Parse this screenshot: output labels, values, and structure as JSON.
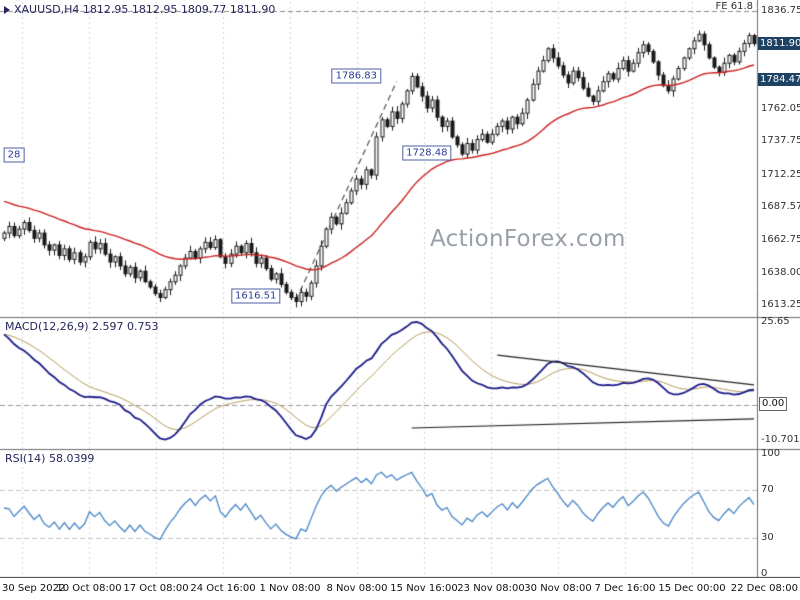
{
  "header": {
    "symbol_ohlc": "XAUUSD,H4 1812.95 1812.95 1809.77 1811.90"
  },
  "watermark": "ActionForex.com",
  "colors": {
    "up_candle": "#ffffff",
    "down_candle": "#1a1a1a",
    "ma_line": "#cc2222",
    "macd_line": "#1c1c8a",
    "macd_signal": "#b79b5e",
    "rsi_line": "#4a86c8",
    "badge_bg": "#1d4263",
    "annotation_blue": "#2c3e94",
    "watermark_gray": "#9aa0a8"
  },
  "price_panel": {
    "fe_label": "FE 61.8",
    "fe_level": 1836.75,
    "ticks": [
      {
        "label": "1836.75",
        "value": 1836.75,
        "badge": false
      },
      {
        "label": "1811.90",
        "value": 1811.9,
        "badge": true
      },
      {
        "label": "1784.47",
        "value": 1784.47,
        "badge": true
      },
      {
        "label": "1762.05",
        "value": 1762.05,
        "badge": false
      },
      {
        "label": "1737.75",
        "value": 1737.75,
        "badge": false
      },
      {
        "label": "1712.25",
        "value": 1712.25,
        "badge": false
      },
      {
        "label": "1687.57",
        "value": 1687.57,
        "badge": false
      },
      {
        "label": "1662.75",
        "value": 1662.75,
        "badge": false
      },
      {
        "label": "1638.00",
        "value": 1638.0,
        "badge": false
      },
      {
        "label": "1613.25",
        "value": 1613.25,
        "badge": false
      }
    ],
    "annotations": [
      {
        "text": "28",
        "i": 1,
        "price": 1727,
        "edge": true
      },
      {
        "text": "1616.51",
        "i": 50,
        "price": 1620,
        "edge": false
      },
      {
        "text": "1786.83",
        "i": 70,
        "price": 1787,
        "edge": false
      },
      {
        "text": "1728.48",
        "i": 84,
        "price": 1729,
        "edge": false
      }
    ],
    "trendline": {
      "from": {
        "i": 58,
        "price": 1617
      },
      "to": {
        "i": 78,
        "price": 1783
      }
    }
  },
  "macd_panel": {
    "label": "MACD(12,26,9) 2.597 0.753",
    "ticks": [
      {
        "label": "25.65",
        "value": 25.65,
        "boxed": false
      },
      {
        "label": "0.00",
        "value": 0,
        "boxed": true
      },
      {
        "label": "-10.701",
        "value": -10.701,
        "boxed": false
      }
    ],
    "wedge": {
      "upper": {
        "from": {
          "i": 98,
          "v": 15.4
        },
        "to": {
          "i": 149,
          "v": 6.2
        }
      },
      "lower": {
        "from": {
          "i": 81,
          "v": -7.1
        },
        "to": {
          "i": 149,
          "v": -4.3
        }
      }
    }
  },
  "rsi_panel": {
    "label": "RSI(14) 58.0399",
    "ticks": [
      {
        "label": "100",
        "value": 100
      },
      {
        "label": "70",
        "value": 70
      },
      {
        "label": "30",
        "value": 30
      },
      {
        "label": "0",
        "value": 0
      }
    ]
  },
  "x_axis": {
    "labels": [
      "30 Sep 2022",
      "10 Oct 08:00",
      "17 Oct 08:00",
      "24 Oct 16:00",
      "1 Nov 08:00",
      "8 Nov 08:00",
      "15 Nov 16:00",
      "23 Nov 08:00",
      "30 Nov 08:00",
      "7 Dec 16:00",
      "15 Dec 00:00",
      "22 Dec 08:00"
    ]
  },
  "chart_data": [
    {
      "type": "candlestick",
      "symbol": "XAUUSD",
      "timeframe": "H4",
      "last": {
        "open": 1812.95,
        "high": 1812.95,
        "low": 1809.77,
        "close": 1811.9
      },
      "x_tick_labels": [
        "30 Sep 2022",
        "10 Oct 08:00",
        "17 Oct 08:00",
        "24 Oct 16:00",
        "1 Nov 08:00",
        "8 Nov 08:00",
        "15 Nov 16:00",
        "23 Nov 08:00",
        "30 Nov 08:00",
        "7 Dec 16:00",
        "15 Dec 00:00",
        "22 Dec 08:00"
      ],
      "y_ticks": [
        1836.75,
        1811.9,
        1784.47,
        1762.05,
        1737.75,
        1712.25,
        1687.57,
        1662.75,
        1638.0,
        1613.25
      ],
      "ylim": [
        1613.25,
        1836.75
      ],
      "key_levels": {
        "fib_expansion_61_8": 1836.75,
        "swing_high": 1786.83,
        "retrace_low": 1728.48,
        "major_low": 1616.51
      },
      "overlays": [
        "red-moving-average",
        "dashed-trendline-from-1616.51-to-1786.83"
      ],
      "close": [
        1668,
        1673,
        1666,
        1671,
        1676,
        1670,
        1664,
        1668,
        1659,
        1655,
        1659,
        1651,
        1656,
        1648,
        1653,
        1646,
        1650,
        1661,
        1656,
        1660,
        1652,
        1646,
        1650,
        1643,
        1637,
        1642,
        1634,
        1639,
        1631,
        1627,
        1622,
        1619,
        1625,
        1631,
        1636,
        1643,
        1649,
        1654,
        1649,
        1656,
        1661,
        1657,
        1663,
        1650,
        1645,
        1652,
        1658,
        1653,
        1660,
        1653,
        1645,
        1649,
        1641,
        1633,
        1637,
        1629,
        1623,
        1619,
        1616,
        1623,
        1620,
        1630,
        1643,
        1658,
        1671,
        1680,
        1675,
        1683,
        1691,
        1700,
        1709,
        1705,
        1716,
        1712,
        1741,
        1754,
        1749,
        1760,
        1755,
        1766,
        1776,
        1787,
        1779,
        1772,
        1763,
        1769,
        1756,
        1749,
        1753,
        1741,
        1735,
        1728,
        1736,
        1731,
        1739,
        1743,
        1737,
        1743,
        1749,
        1753,
        1747,
        1756,
        1751,
        1759,
        1769,
        1781,
        1791,
        1799,
        1808,
        1801,
        1795,
        1788,
        1782,
        1791,
        1786,
        1778,
        1772,
        1768,
        1776,
        1783,
        1789,
        1785,
        1793,
        1799,
        1791,
        1797,
        1805,
        1811,
        1806,
        1798,
        1788,
        1780,
        1776,
        1785,
        1793,
        1801,
        1808,
        1814,
        1819,
        1811,
        1801,
        1794,
        1790,
        1797,
        1803,
        1798,
        1806,
        1812,
        1818,
        1811.9
      ]
    },
    {
      "type": "line",
      "name": "MACD(12,26,9)",
      "params": {
        "fast": 12,
        "slow": 26,
        "signal": 9
      },
      "current": {
        "macd": 2.597,
        "signal": 0.753
      },
      "y_ticks": [
        25.65,
        0,
        -10.701
      ],
      "range": {
        "max": 25.65,
        "min": -10.701
      },
      "derived_from": "chart_data[0].close"
    },
    {
      "type": "line",
      "name": "RSI(14)",
      "params": {
        "period": 14
      },
      "current": 58.0399,
      "y_ticks": [
        100,
        70,
        30,
        0
      ],
      "overbought": 70,
      "oversold": 30,
      "derived_from": "chart_data[0].close"
    }
  ]
}
